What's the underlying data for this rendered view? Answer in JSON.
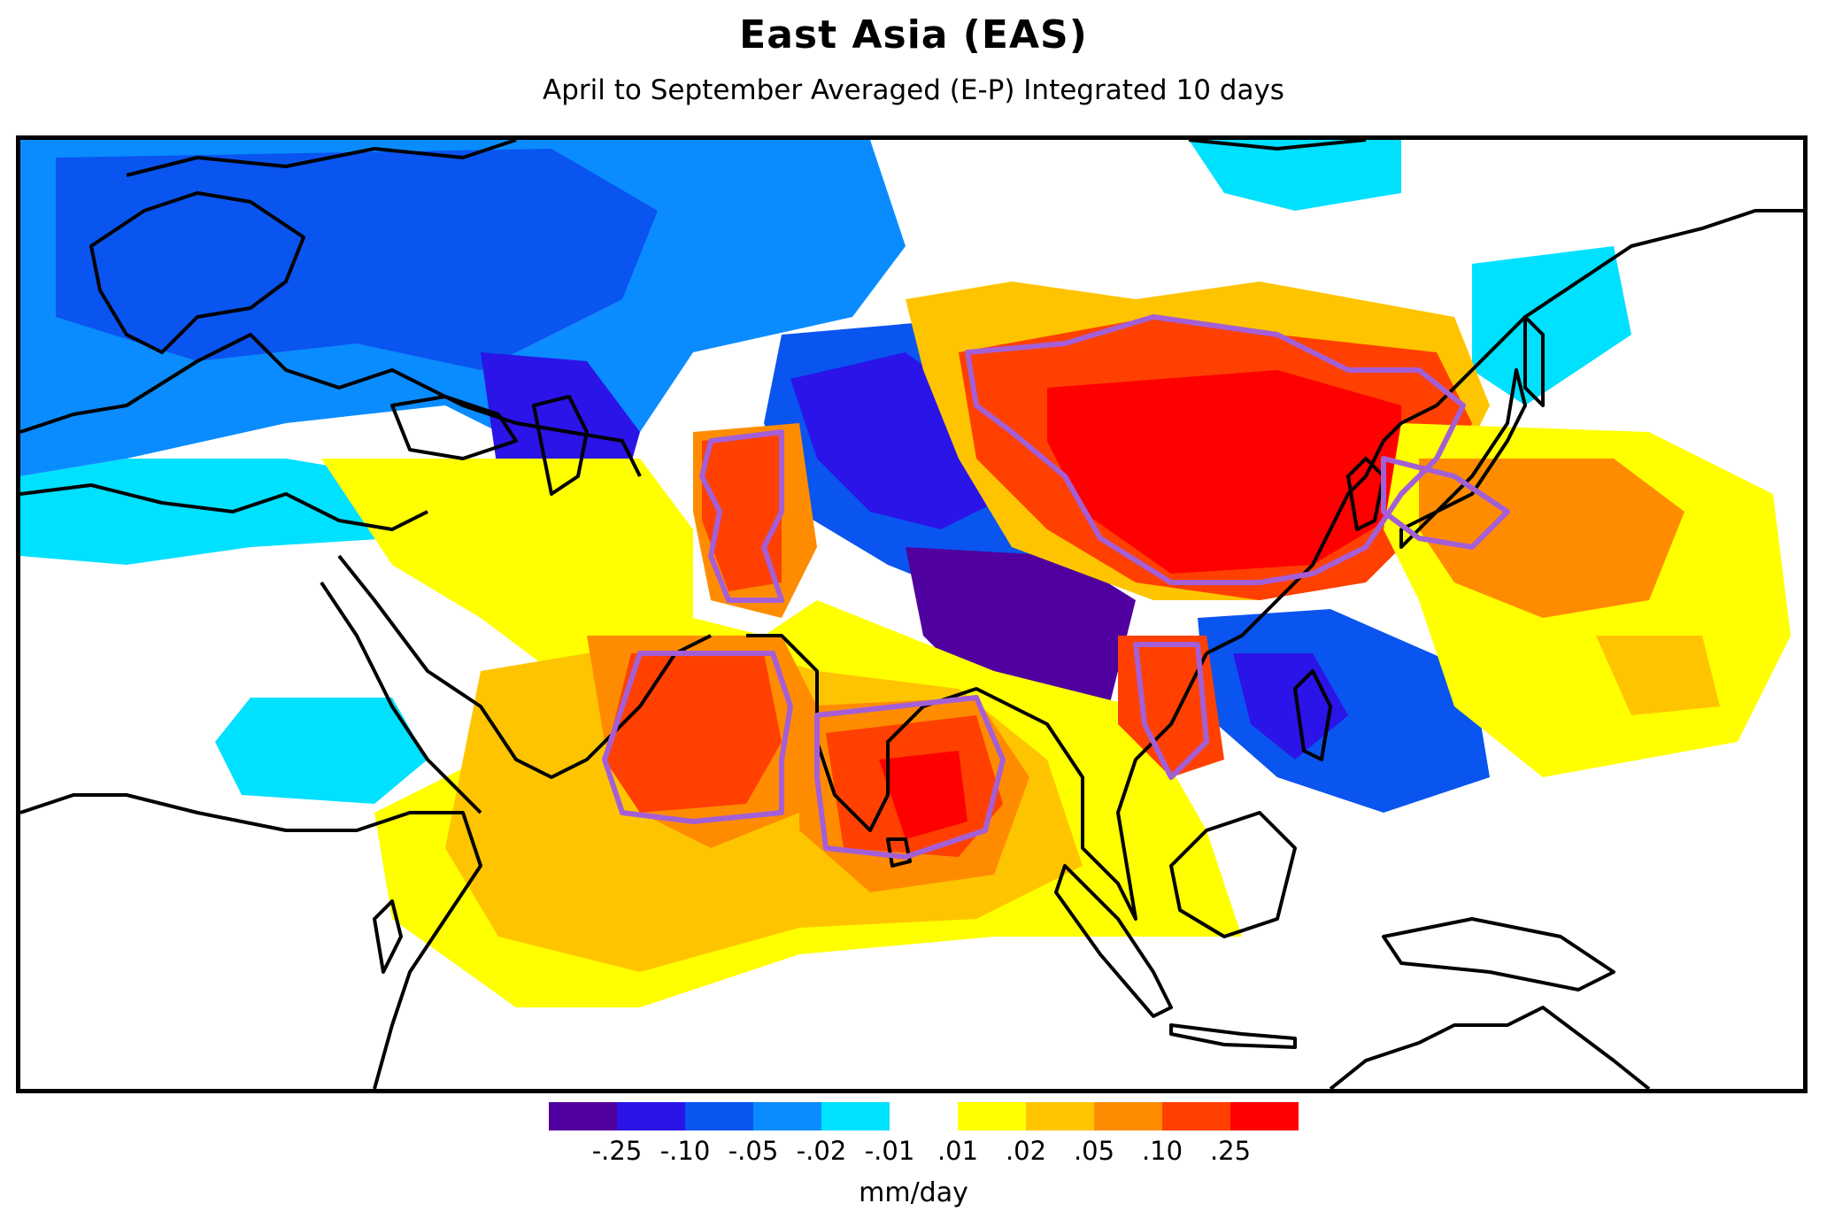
{
  "map": {
    "title": "East Asia (EAS)",
    "subtitle": "April to September Averaged (E-P) Integrated 10 days",
    "region": "East Asia",
    "outline_color": "#a45fd6",
    "coastline_color": "#000000"
  },
  "colorbar": {
    "negative_colors": [
      "#50009e",
      "#2a14e8",
      "#0a54f0",
      "#0a8cff",
      "#00e0ff"
    ],
    "positive_colors": [
      "#ffff00",
      "#ffc400",
      "#ff8c00",
      "#ff4000",
      "#ff0000"
    ],
    "ticks": [
      "-.25",
      "-.10",
      "-.05",
      "-.02",
      "-.01",
      ".01",
      ".02",
      ".05",
      ".10",
      ".25"
    ],
    "units": "mm/day"
  }
}
